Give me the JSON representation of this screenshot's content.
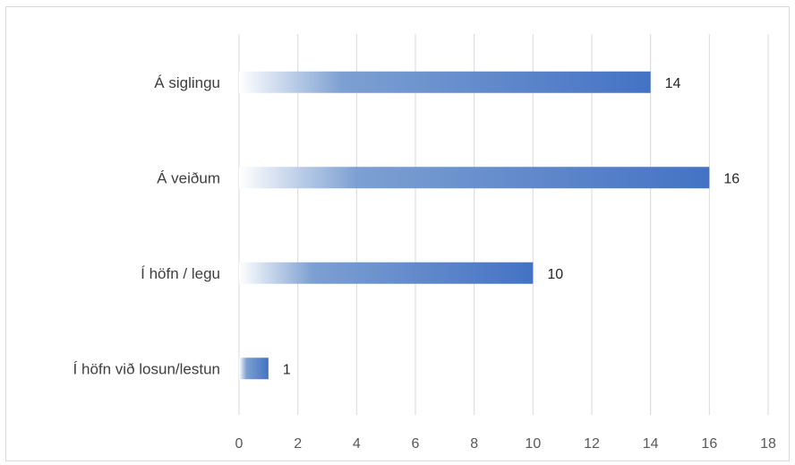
{
  "chart_data": {
    "type": "bar",
    "orientation": "horizontal",
    "categories": [
      "Á siglingu",
      "Á veiðum",
      "Í höfn / legu",
      "Í höfn við losun/lestun"
    ],
    "values": [
      14,
      16,
      10,
      1
    ],
    "data_labels": [
      "14",
      "16",
      "10",
      "1"
    ],
    "xlim": [
      0,
      18
    ],
    "x_ticks": [
      0,
      2,
      4,
      6,
      8,
      10,
      12,
      14,
      16,
      18
    ],
    "x_tick_labels": [
      "0",
      "2",
      "4",
      "6",
      "8",
      "10",
      "12",
      "14",
      "16",
      "18"
    ],
    "grid": "vertical",
    "legend": "none",
    "title": "",
    "xlabel": "",
    "ylabel": "",
    "colors": {
      "bar_start": "#ffffff",
      "bar_mid": "#7da0d2",
      "bar_end": "#4472c4",
      "grid": "#d9d9d9"
    }
  }
}
